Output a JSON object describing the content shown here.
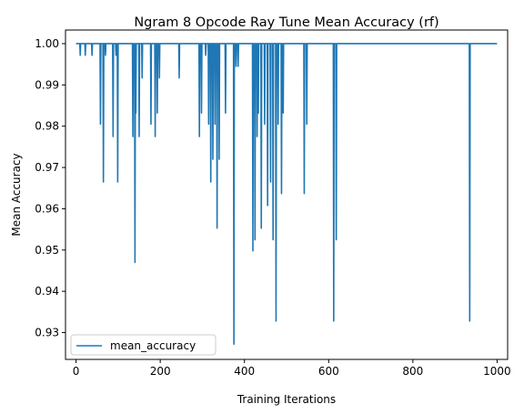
{
  "chart_data": {
    "type": "line",
    "title": "Ngram 8 Opcode Ray Tune Mean Accuracy (rf)",
    "xlabel": "Training Iterations",
    "ylabel": "Mean Accuracy",
    "xlim": [
      -25,
      1025
    ],
    "ylim": [
      0.9235,
      1.0033
    ],
    "xticks": [
      0,
      200,
      400,
      600,
      800,
      1000
    ],
    "xtick_labels": [
      "0",
      "200",
      "400",
      "600",
      "800",
      "1000"
    ],
    "yticks": [
      0.93,
      0.94,
      0.95,
      0.96,
      0.97,
      0.98,
      0.99,
      1.0
    ],
    "ytick_labels": [
      "0.93",
      "0.94",
      "0.95",
      "0.96",
      "0.97",
      "0.98",
      "0.99",
      "1.00"
    ],
    "grid": false,
    "legend_position": "lower-left",
    "colors": {
      "series": "#1f77b4"
    },
    "series": [
      {
        "name": "mean_accuracy",
        "baseline": 1.0,
        "x_range": [
          0,
          1000
        ],
        "dips": [
          {
            "x": 10,
            "y": 0.9972
          },
          {
            "x": 22,
            "y": 0.9972
          },
          {
            "x": 38,
            "y": 0.9972
          },
          {
            "x": 58,
            "y": 0.9805
          },
          {
            "x": 65,
            "y": 0.9665
          },
          {
            "x": 70,
            "y": 0.9972
          },
          {
            "x": 88,
            "y": 0.9775
          },
          {
            "x": 95,
            "y": 0.9972
          },
          {
            "x": 99,
            "y": 0.9665
          },
          {
            "x": 135,
            "y": 0.9775
          },
          {
            "x": 140,
            "y": 0.947
          },
          {
            "x": 142,
            "y": 0.9832
          },
          {
            "x": 150,
            "y": 0.9775
          },
          {
            "x": 157,
            "y": 0.9917
          },
          {
            "x": 178,
            "y": 0.9805
          },
          {
            "x": 188,
            "y": 0.9775
          },
          {
            "x": 193,
            "y": 0.9832
          },
          {
            "x": 198,
            "y": 0.9917
          },
          {
            "x": 245,
            "y": 0.9917
          },
          {
            "x": 293,
            "y": 0.9775
          },
          {
            "x": 298,
            "y": 0.9832
          },
          {
            "x": 308,
            "y": 0.9972
          },
          {
            "x": 315,
            "y": 0.9805
          },
          {
            "x": 320,
            "y": 0.9665
          },
          {
            "x": 325,
            "y": 0.972
          },
          {
            "x": 330,
            "y": 0.9805
          },
          {
            "x": 335,
            "y": 0.9553
          },
          {
            "x": 340,
            "y": 0.972
          },
          {
            "x": 355,
            "y": 0.9832
          },
          {
            "x": 375,
            "y": 0.9272
          },
          {
            "x": 380,
            "y": 0.9945
          },
          {
            "x": 385,
            "y": 0.9945
          },
          {
            "x": 420,
            "y": 0.9498
          },
          {
            "x": 425,
            "y": 0.9525
          },
          {
            "x": 430,
            "y": 0.9775
          },
          {
            "x": 433,
            "y": 0.9832
          },
          {
            "x": 440,
            "y": 0.9553
          },
          {
            "x": 448,
            "y": 0.9805
          },
          {
            "x": 455,
            "y": 0.9608
          },
          {
            "x": 462,
            "y": 0.9665
          },
          {
            "x": 468,
            "y": 0.9525
          },
          {
            "x": 475,
            "y": 0.9328
          },
          {
            "x": 480,
            "y": 0.9805
          },
          {
            "x": 488,
            "y": 0.9637
          },
          {
            "x": 492,
            "y": 0.9832
          },
          {
            "x": 542,
            "y": 0.9637
          },
          {
            "x": 548,
            "y": 0.9805
          },
          {
            "x": 612,
            "y": 0.9328
          },
          {
            "x": 618,
            "y": 0.9525
          },
          {
            "x": 935,
            "y": 0.9328
          }
        ]
      }
    ]
  }
}
